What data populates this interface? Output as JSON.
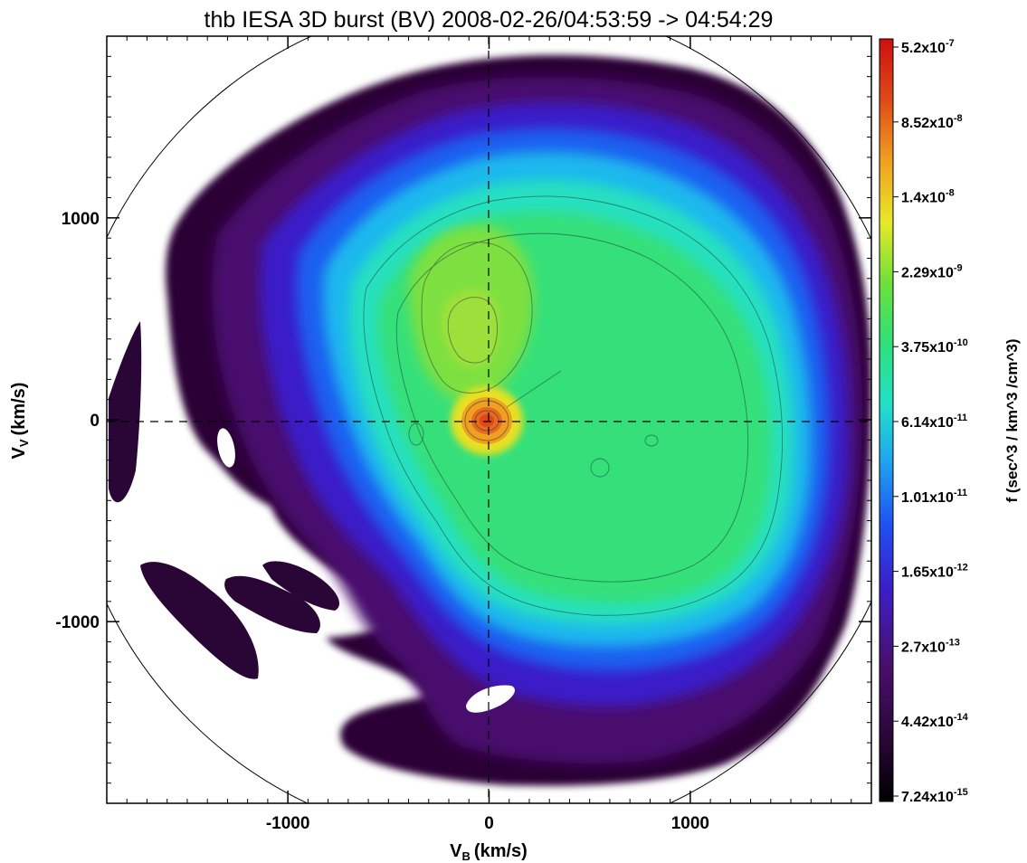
{
  "chart_data": {
    "type": "heatmap",
    "title": "thb IESA 3D burst (BV) 2008-02-26/04:53:59 -> 04:54:29",
    "xlabel": "V",
    "xlabel_sub": "B",
    "xlabel_unit": "(km/s)",
    "ylabel": "V",
    "ylabel_sub": "V",
    "ylabel_unit": "(km/s)",
    "xlim": [
      -1900,
      1900
    ],
    "ylim": [
      -1900,
      1900
    ],
    "x_ticks": [
      {
        "value": -1000,
        "label": "-1000"
      },
      {
        "value": 0,
        "label": "0"
      },
      {
        "value": 1000,
        "label": "1000"
      }
    ],
    "y_ticks": [
      {
        "value": 1000,
        "label": "1000"
      },
      {
        "value": 0,
        "label": "0"
      },
      {
        "value": -1000,
        "label": "-1000"
      }
    ],
    "colorbar": {
      "label": "f (sec^3 / km^3 /cm^3)",
      "scale": "log",
      "range": [
        7.24e-15,
        5.2e-07
      ],
      "ticks": [
        {
          "mant": "5.2",
          "exp": "-7"
        },
        {
          "mant": "8.52",
          "exp": "-8"
        },
        {
          "mant": "1.4",
          "exp": "-8"
        },
        {
          "mant": "2.29",
          "exp": "-9"
        },
        {
          "mant": "3.75",
          "exp": "-10"
        },
        {
          "mant": "6.14",
          "exp": "-11"
        },
        {
          "mant": "1.01",
          "exp": "-11"
        },
        {
          "mant": "1.65",
          "exp": "-12"
        },
        {
          "mant": "2.7",
          "exp": "-13"
        },
        {
          "mant": "4.42",
          "exp": "-14"
        },
        {
          "mant": "7.24",
          "exp": "-15"
        }
      ]
    },
    "colors": {
      "background": "#ffffff",
      "level_colors": [
        "#2a0636",
        "#4a0f6e",
        "#4a1ab8",
        "#2f35e8",
        "#1f7fe8",
        "#19c3e8",
        "#2ee6b0",
        "#35e070",
        "#55e04a",
        "#9be03a",
        "#f0e020",
        "#f0a020",
        "#e05a20",
        "#d81f10"
      ]
    }
  }
}
